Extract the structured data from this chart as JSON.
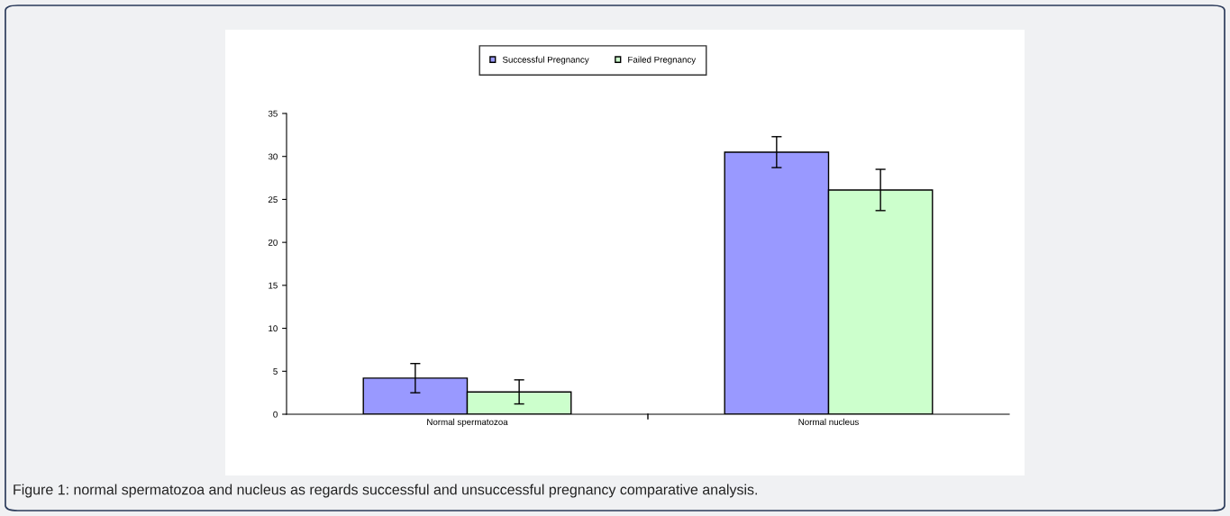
{
  "chart_data": {
    "type": "bar",
    "categories": [
      "Normal spermatozoa",
      "Normal nucleus"
    ],
    "series": [
      {
        "name": "Successful Pregnancy",
        "color": "#9999ff",
        "values": [
          4.2,
          30.5
        ],
        "errors": [
          1.7,
          1.8
        ]
      },
      {
        "name": "Failed Pregnancy",
        "color": "#ccffcc",
        "values": [
          2.6,
          26.1
        ],
        "errors": [
          1.4,
          2.4
        ]
      }
    ],
    "ylim": [
      0,
      35
    ],
    "yticks": [
      0,
      5,
      10,
      15,
      20,
      25,
      30,
      35
    ],
    "grid": false,
    "legend": "top",
    "annotations": [
      "Figure 1: normal spermatozoa and nucleus as regards successful and unsuccessful pregnancy comparative analysis."
    ]
  }
}
